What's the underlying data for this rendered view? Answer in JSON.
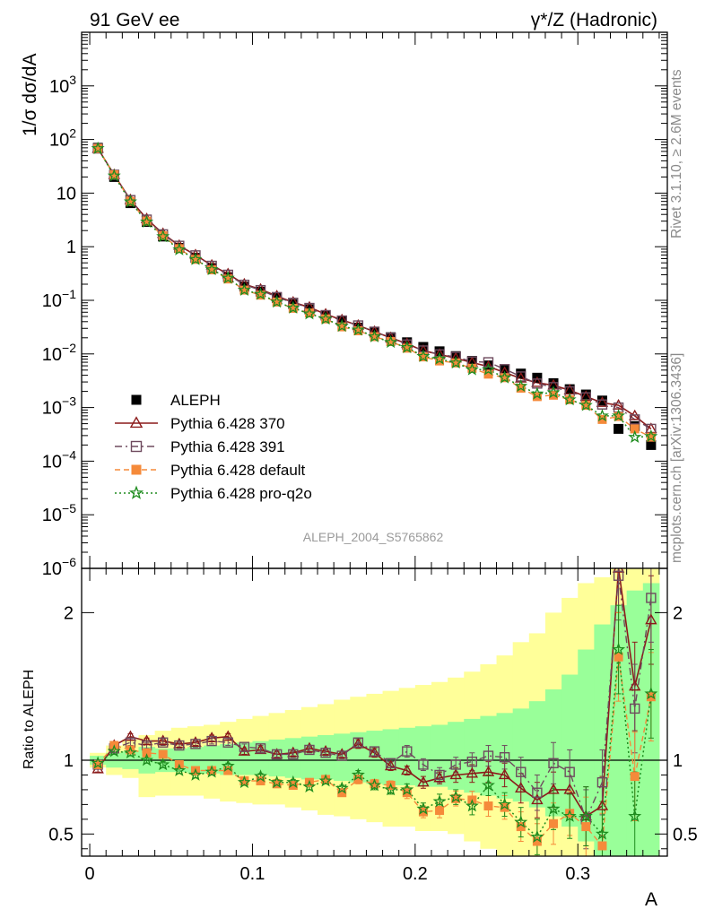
{
  "header": {
    "left": "91 GeV ee",
    "right": "γ*/Z (Hadronic)"
  },
  "side_labels": {
    "rivet": "Rivet 3.1.10, ≥ 2.6M events",
    "mcplots": "mcplots.cern.ch [arXiv:1306.3436]"
  },
  "analysis_id": "ALEPH_2004_S5765862",
  "colors": {
    "aleph": "#000000",
    "p370": "#8b1a1a",
    "p391": "#6e4a5e",
    "pdef": "#f58a3a",
    "pq2o": "#1e8c1e",
    "band_yellow": "#ffff99",
    "band_green": "#99ff99"
  },
  "chart_data": [
    {
      "type": "scatter",
      "panel": "main",
      "ylabel": "1/σ  dσ/dA",
      "yscale": "log",
      "ylim": [
        1e-06,
        10000.0
      ],
      "xlim": [
        -0.005,
        0.355
      ],
      "xticks": [
        0,
        0.1,
        0.2,
        0.3
      ],
      "ytick_labels": [
        "10^-6",
        "10^-5",
        "10^-4",
        "10^-3",
        "10^-2",
        "10^-1",
        "1",
        "10",
        "10^2",
        "10^3"
      ],
      "x": [
        0.005,
        0.015,
        0.025,
        0.035,
        0.045,
        0.055,
        0.065,
        0.075,
        0.085,
        0.095,
        0.105,
        0.115,
        0.125,
        0.135,
        0.145,
        0.155,
        0.165,
        0.175,
        0.185,
        0.195,
        0.205,
        0.215,
        0.225,
        0.235,
        0.245,
        0.255,
        0.265,
        0.275,
        0.285,
        0.295,
        0.305,
        0.315,
        0.325,
        0.335,
        0.345
      ],
      "legend_position": "bottom-left",
      "series": [
        {
          "name": "ALEPH",
          "key": "aleph",
          "marker": "square-filled",
          "values": [
            70,
            20,
            6.5,
            2.9,
            1.55,
            0.95,
            0.62,
            0.4,
            0.27,
            0.18,
            0.145,
            0.11,
            0.085,
            0.068,
            0.052,
            0.041,
            0.031,
            0.025,
            0.0205,
            0.0165,
            0.0135,
            0.0112,
            0.0091,
            0.0074,
            0.0061,
            0.0051,
            0.0043,
            0.0036,
            0.00285,
            0.0022,
            0.00175,
            0.00135,
            0.0004,
            0.00045,
            0.0002
          ]
        },
        {
          "name": "Pythia 6.428 370",
          "key": "p370",
          "marker": "triangle-open",
          "values": [
            68,
            22,
            7.5,
            3.3,
            1.75,
            1.05,
            0.7,
            0.45,
            0.31,
            0.2,
            0.16,
            0.12,
            0.092,
            0.074,
            0.055,
            0.043,
            0.034,
            0.026,
            0.02,
            0.0155,
            0.0115,
            0.0098,
            0.0083,
            0.0069,
            0.0058,
            0.0045,
            0.0035,
            0.0029,
            0.0026,
            0.0021,
            0.0016,
            0.00123,
            0.0011,
            0.0007,
            0.0004
          ]
        },
        {
          "name": "Pythia 6.428 391",
          "key": "p391",
          "marker": "square-open",
          "values": [
            68,
            22,
            7.4,
            3.2,
            1.7,
            1.04,
            0.69,
            0.44,
            0.3,
            0.195,
            0.155,
            0.115,
            0.09,
            0.072,
            0.053,
            0.042,
            0.034,
            0.026,
            0.02,
            0.015,
            0.0116,
            0.0098,
            0.0088,
            0.0072,
            0.007,
            0.0052,
            0.0038,
            0.0028,
            0.0024,
            0.002,
            0.00155,
            0.00114,
            0.001,
            0.0006,
            0.0004
          ]
        },
        {
          "name": "Pythia 6.428 default",
          "key": "pdef",
          "marker": "square-filled",
          "values": [
            68,
            22,
            7.0,
            3.0,
            1.6,
            0.92,
            0.58,
            0.37,
            0.25,
            0.155,
            0.125,
            0.093,
            0.071,
            0.058,
            0.045,
            0.032,
            0.027,
            0.021,
            0.017,
            0.0128,
            0.0088,
            0.0074,
            0.0068,
            0.0054,
            0.0042,
            0.0036,
            0.0023,
            0.0016,
            0.0017,
            0.0014,
            0.0011,
            0.0006,
            0.00068,
            0.0004,
            0.00028
          ]
        },
        {
          "name": "Pythia 6.428 pro-q2o",
          "key": "pq2o",
          "marker": "star-open",
          "values": [
            68,
            21,
            6.9,
            2.9,
            1.55,
            0.88,
            0.58,
            0.375,
            0.26,
            0.155,
            0.13,
            0.093,
            0.072,
            0.056,
            0.045,
            0.033,
            0.028,
            0.021,
            0.0165,
            0.0132,
            0.009,
            0.0081,
            0.0068,
            0.0051,
            0.0051,
            0.0036,
            0.0025,
            0.0018,
            0.0019,
            0.0014,
            0.0011,
            0.0007,
            0.0007,
            0.00028,
            0.00029
          ]
        }
      ]
    },
    {
      "type": "scatter",
      "panel": "ratio",
      "ylabel": "Ratio to ALEPH",
      "ylim": [
        0.35,
        2.3
      ],
      "xlim": [
        -0.005,
        0.355
      ],
      "xlabel": "A",
      "xtick_labels": [
        "0",
        "0.1",
        "0.2",
        "0.3"
      ],
      "ytick_labels": [
        "0.5",
        "1",
        "2"
      ],
      "x": [
        0.005,
        0.015,
        0.025,
        0.035,
        0.045,
        0.055,
        0.065,
        0.075,
        0.085,
        0.095,
        0.105,
        0.115,
        0.125,
        0.135,
        0.145,
        0.155,
        0.165,
        0.175,
        0.185,
        0.195,
        0.205,
        0.215,
        0.225,
        0.235,
        0.245,
        0.255,
        0.265,
        0.275,
        0.285,
        0.295,
        0.305,
        0.315,
        0.325,
        0.335,
        0.345
      ],
      "bands": {
        "edges": [
          0.0,
          0.01,
          0.02,
          0.03,
          0.04,
          0.05,
          0.06,
          0.07,
          0.08,
          0.09,
          0.1,
          0.11,
          0.12,
          0.13,
          0.14,
          0.15,
          0.16,
          0.17,
          0.18,
          0.19,
          0.2,
          0.21,
          0.22,
          0.23,
          0.24,
          0.25,
          0.26,
          0.27,
          0.28,
          0.29,
          0.3,
          0.31,
          0.32,
          0.33,
          0.34,
          0.35
        ],
        "yellow_low": [
          0.95,
          0.9,
          0.88,
          0.75,
          0.76,
          0.76,
          0.76,
          0.74,
          0.72,
          0.71,
          0.7,
          0.7,
          0.68,
          0.66,
          0.63,
          0.62,
          0.6,
          0.58,
          0.55,
          0.55,
          0.52,
          0.52,
          0.5,
          0.45,
          0.4,
          0.35,
          0.35,
          0.35,
          0.35,
          0.35,
          0.35,
          0.35,
          0.35,
          0.35,
          0.35
        ],
        "yellow_high": [
          1.05,
          1.1,
          1.14,
          1.17,
          1.2,
          1.22,
          1.23,
          1.24,
          1.26,
          1.28,
          1.3,
          1.32,
          1.34,
          1.36,
          1.38,
          1.41,
          1.43,
          1.45,
          1.47,
          1.49,
          1.51,
          1.53,
          1.56,
          1.6,
          1.65,
          1.71,
          1.8,
          1.86,
          2.0,
          2.1,
          2.2,
          2.24,
          2.3,
          2.3,
          2.3
        ],
        "green_low": [
          0.97,
          0.95,
          0.94,
          0.91,
          0.92,
          0.92,
          0.91,
          0.91,
          0.9,
          0.9,
          0.9,
          0.89,
          0.88,
          0.87,
          0.87,
          0.86,
          0.85,
          0.84,
          0.83,
          0.83,
          0.82,
          0.82,
          0.8,
          0.78,
          0.76,
          0.74,
          0.72,
          0.68,
          0.62,
          0.55,
          0.45,
          0.35,
          0.35,
          0.35,
          0.35
        ],
        "green_high": [
          1.03,
          1.05,
          1.06,
          1.09,
          1.08,
          1.08,
          1.09,
          1.1,
          1.11,
          1.12,
          1.13,
          1.14,
          1.15,
          1.16,
          1.17,
          1.18,
          1.19,
          1.2,
          1.21,
          1.22,
          1.23,
          1.24,
          1.26,
          1.28,
          1.3,
          1.32,
          1.35,
          1.4,
          1.48,
          1.58,
          1.75,
          1.92,
          2.05,
          2.15,
          2.2
        ]
      },
      "series": [
        {
          "name": "Pythia 6.428 370",
          "key": "p370",
          "marker": "triangle-open",
          "values": [
            0.94,
            1.1,
            1.16,
            1.13,
            1.13,
            1.11,
            1.12,
            1.15,
            1.16,
            1.06,
            1.07,
            1.04,
            1.05,
            1.08,
            1.06,
            1.04,
            1.11,
            1.05,
            0.96,
            0.93,
            0.85,
            0.88,
            0.9,
            0.91,
            0.92,
            0.9,
            0.81,
            0.73,
            0.8,
            0.8,
            0.62,
            0.69,
            2.3,
            1.5,
            1.95
          ],
          "err": [
            0.02,
            0.02,
            0.02,
            0.02,
            0.02,
            0.02,
            0.02,
            0.02,
            0.02,
            0.02,
            0.02,
            0.02,
            0.02,
            0.02,
            0.02,
            0.02,
            0.03,
            0.03,
            0.03,
            0.03,
            0.04,
            0.04,
            0.05,
            0.06,
            0.07,
            0.08,
            0.1,
            0.12,
            0.12,
            0.15,
            0.2,
            0.2,
            0.3,
            0.3,
            0.3
          ]
        },
        {
          "name": "Pythia 6.428 391",
          "key": "p391",
          "marker": "square-open",
          "values": [
            0.97,
            1.08,
            1.12,
            1.1,
            1.12,
            1.1,
            1.11,
            1.13,
            1.12,
            1.09,
            1.08,
            1.04,
            1.04,
            1.07,
            1.05,
            1.03,
            1.12,
            1.06,
            0.98,
            1.06,
            0.97,
            0.9,
            0.97,
            0.99,
            1.03,
            1.02,
            0.92,
            0.78,
            0.98,
            0.92,
            0.6,
            0.85,
            2.25,
            1.35,
            2.1
          ],
          "err": [
            0.02,
            0.02,
            0.02,
            0.02,
            0.02,
            0.02,
            0.02,
            0.02,
            0.02,
            0.02,
            0.02,
            0.02,
            0.02,
            0.02,
            0.02,
            0.02,
            0.03,
            0.03,
            0.03,
            0.04,
            0.04,
            0.05,
            0.05,
            0.06,
            0.07,
            0.08,
            0.1,
            0.12,
            0.14,
            0.15,
            0.2,
            0.22,
            0.3,
            0.3,
            0.3
          ]
        },
        {
          "name": "Pythia 6.428 default",
          "key": "pdef",
          "marker": "square-filled",
          "values": [
            0.97,
            1.1,
            1.07,
            1.05,
            1.04,
            0.97,
            0.93,
            0.93,
            0.93,
            0.86,
            0.86,
            0.84,
            0.83,
            0.85,
            0.87,
            0.78,
            0.87,
            0.84,
            0.83,
            0.78,
            0.65,
            0.66,
            0.74,
            0.73,
            0.69,
            0.68,
            0.55,
            0.45,
            0.57,
            0.64,
            0.55,
            0.42,
            1.7,
            0.89,
            1.43
          ],
          "err": [
            0.02,
            0.02,
            0.02,
            0.02,
            0.02,
            0.02,
            0.02,
            0.02,
            0.02,
            0.02,
            0.02,
            0.02,
            0.02,
            0.02,
            0.02,
            0.02,
            0.03,
            0.03,
            0.03,
            0.04,
            0.04,
            0.05,
            0.05,
            0.06,
            0.07,
            0.08,
            0.1,
            0.12,
            0.14,
            0.15,
            0.2,
            0.22,
            0.3,
            0.3,
            0.3
          ]
        },
        {
          "name": "Pythia 6.428 pro-q2o",
          "key": "pq2o",
          "marker": "star-open",
          "values": [
            0.98,
            1.06,
            1.05,
            1.0,
            0.97,
            0.93,
            0.9,
            0.92,
            0.96,
            0.85,
            0.89,
            0.85,
            0.85,
            0.82,
            0.86,
            0.81,
            0.9,
            0.83,
            0.8,
            0.8,
            0.67,
            0.72,
            0.75,
            0.69,
            0.83,
            0.7,
            0.58,
            0.48,
            0.67,
            0.62,
            0.62,
            0.5,
            1.75,
            0.62,
            1.45
          ],
          "err": [
            0.02,
            0.02,
            0.02,
            0.02,
            0.02,
            0.02,
            0.02,
            0.02,
            0.02,
            0.02,
            0.02,
            0.02,
            0.02,
            0.02,
            0.02,
            0.02,
            0.03,
            0.03,
            0.03,
            0.04,
            0.04,
            0.05,
            0.05,
            0.06,
            0.07,
            0.08,
            0.1,
            0.12,
            0.14,
            0.15,
            0.2,
            0.22,
            0.3,
            0.3,
            0.3
          ]
        }
      ]
    }
  ]
}
